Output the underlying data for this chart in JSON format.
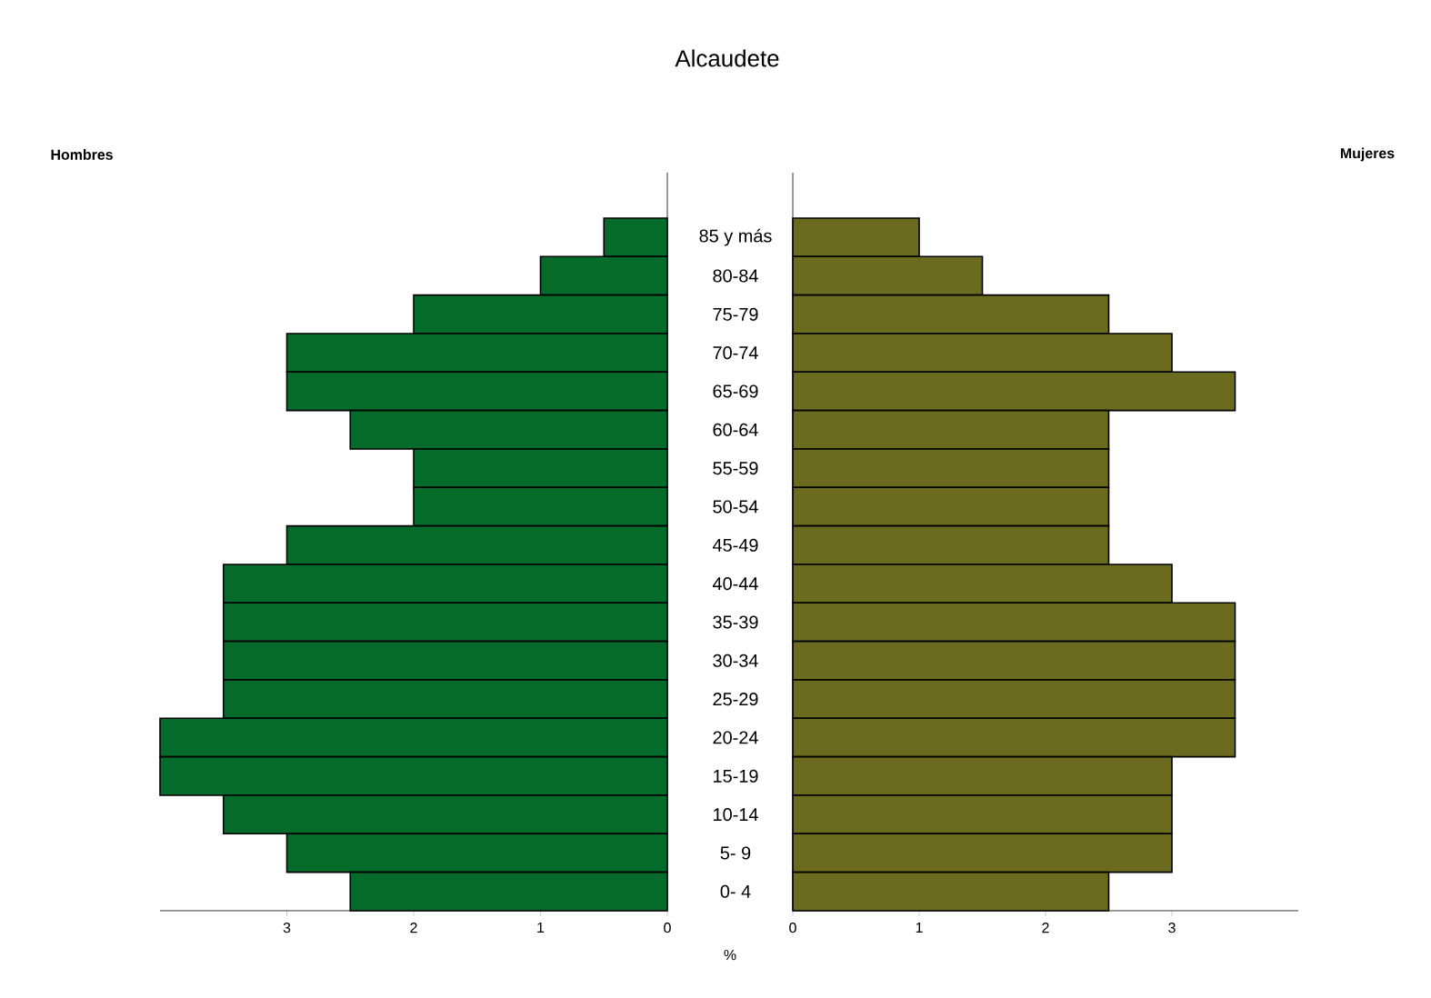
{
  "chart_data": [
    {
      "type": "bar",
      "orientation": "horizontal",
      "title": "Alcaudete",
      "xlabel": "%",
      "categories": [
        "85 y más",
        "80-84",
        "75-79",
        "70-74",
        "65-69",
        "60-64",
        "55-59",
        "50-54",
        "45-49",
        "40-44",
        "35-39",
        "30-34",
        "25-29",
        "20-24",
        "15-19",
        "10-14",
        "5- 9",
        "0- 4"
      ],
      "series": [
        {
          "name": "Hombres",
          "color": "#046b2a",
          "values": [
            0.5,
            1.0,
            2.0,
            3.0,
            3.0,
            2.5,
            2.0,
            2.0,
            3.0,
            3.5,
            3.5,
            3.5,
            3.5,
            4.0,
            4.0,
            3.5,
            3.0,
            2.5
          ]
        }
      ],
      "xlim": [
        4,
        0
      ],
      "xticks": [
        3,
        2,
        1,
        0
      ]
    },
    {
      "type": "bar",
      "orientation": "horizontal",
      "tick_labels": "x",
      "categories": [
        null,
        null,
        null,
        null,
        null,
        null,
        null,
        null,
        null,
        null,
        null,
        null,
        null,
        null,
        null,
        null,
        null,
        null
      ],
      "series": [
        {
          "name": "Mujeres",
          "color": "#6b6b1f",
          "values": [
            1.0,
            1.5,
            2.5,
            3.0,
            3.5,
            2.5,
            2.5,
            2.5,
            2.5,
            3.0,
            3.5,
            3.5,
            3.5,
            3.5,
            3.0,
            3.0,
            3.0,
            2.5
          ]
        }
      ],
      "xlim": [
        0,
        4
      ],
      "xticks": [
        0,
        1,
        2,
        3
      ]
    }
  ]
}
